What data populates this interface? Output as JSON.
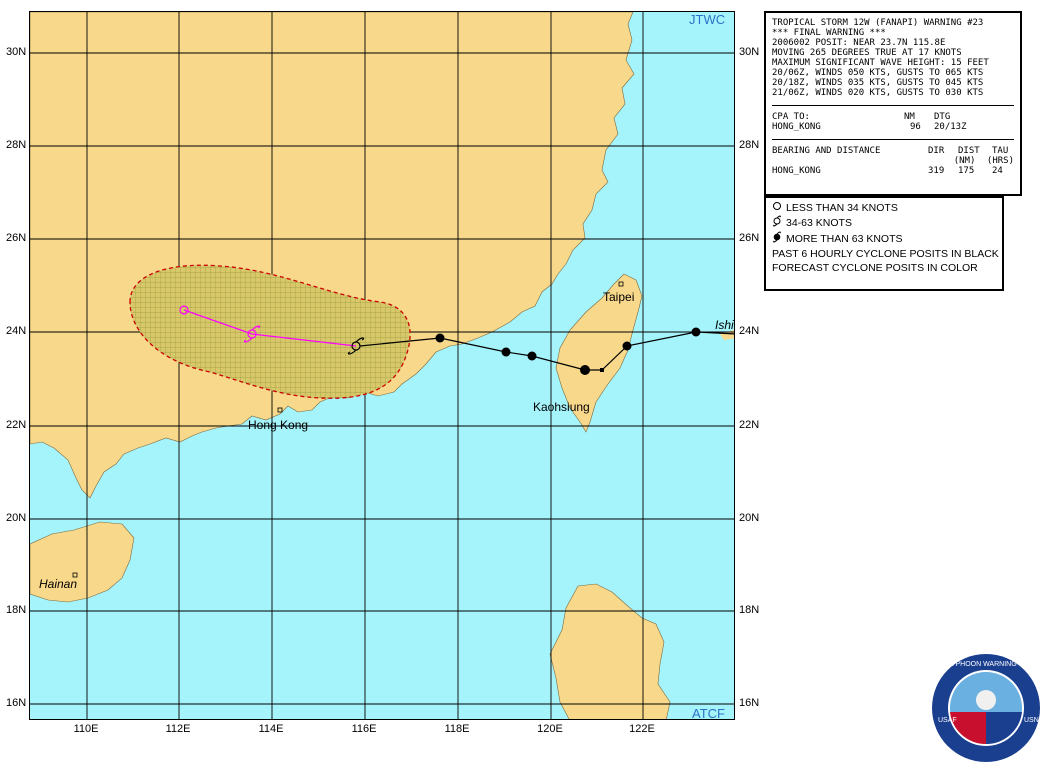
{
  "map": {
    "top_left_tag": "JTWC",
    "bottom_right_tag": "ATCF",
    "lat_labels": [
      "30N",
      "28N",
      "26N",
      "24N",
      "22N",
      "20N",
      "18N",
      "16N"
    ],
    "lon_labels": [
      "110E",
      "112E",
      "114E",
      "116E",
      "118E",
      "120E",
      "122E"
    ],
    "places": {
      "hong_kong": "Hong Kong",
      "taipei": "Taipei",
      "kaohsiung": "Kaohsiung",
      "hainan": "Hainan",
      "ishigaki": "Ishi"
    },
    "colors": {
      "land": "#f8d88a",
      "sea": "#a6f4fb",
      "grid": "#000000",
      "forecast_track": "#ff00ff",
      "danger_area": "#cc0000"
    }
  },
  "warning": {
    "lines": [
      "TROPICAL STORM 12W (FANAPI) WARNING #23",
      "*** FINAL WARNING ***",
      "2006002 POSIT: NEAR 23.7N 115.8E",
      "MOVING 265 DEGREES TRUE AT 17 KNOTS",
      "MAXIMUM SIGNIFICANT WAVE HEIGHT: 15 FEET",
      "20/06Z, WINDS 050 KTS, GUSTS TO 065 KTS",
      "20/18Z, WINDS 035 KTS, GUSTS TO 045 KTS",
      "21/06Z, WINDS 020 KTS, GUSTS TO 030 KTS"
    ],
    "cpa": {
      "header": "CPA TO:",
      "nm_header": "NM",
      "dtg_header": "DTG",
      "place": "HONG_KONG",
      "nm": "96",
      "dtg": "20/13Z"
    },
    "bearing": {
      "header": "BEARING AND DISTANCE",
      "dir_header": "DIR",
      "dist_header": "DIST",
      "dist_unit": "(NM)",
      "tau_header": "TAU",
      "tau_unit": "(HRS)",
      "place": "HONG_KONG",
      "dir": "319",
      "dist": "175",
      "tau": "24"
    }
  },
  "legend": {
    "items": [
      {
        "icon": "open-circle-icon",
        "label": "LESS THAN 34 KNOTS"
      },
      {
        "icon": "tropical-storm-icon",
        "label": "34-63 KNOTS"
      },
      {
        "icon": "typhoon-icon",
        "label": "MORE THAN 63 KNOTS"
      }
    ],
    "notes": [
      "PAST 6 HOURLY CYCLONE POSITS IN BLACK",
      "FORECAST CYCLONE POSITS IN COLOR"
    ]
  },
  "seal": {
    "text": "JOINT TYPHOON WARNING CENTER",
    "left": "USAF",
    "right": "USN"
  }
}
